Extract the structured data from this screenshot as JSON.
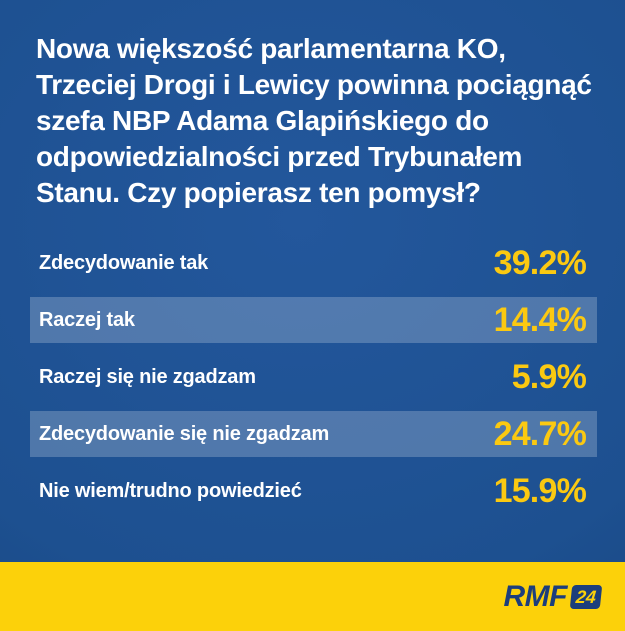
{
  "poll": {
    "question": "Nowa większość parlamentarna KO, Trzeciej Drogi i Lewicy powinna pociągnąć szefa NBP Adama Glapińskiego do odpowiedzialności przed Trybunałem Stanu. Czy popierasz ten pomysł?",
    "options": [
      {
        "label": "Zdecydowanie tak",
        "value": "39.2%",
        "highlighted": false
      },
      {
        "label": "Raczej tak",
        "value": "14.4%",
        "highlighted": true
      },
      {
        "label": "Raczej się nie zgadzam",
        "value": "5.9%",
        "highlighted": false
      },
      {
        "label": "Zdecydowanie się nie zgadzam",
        "value": "24.7%",
        "highlighted": true
      },
      {
        "label": "Nie wiem/trudno powiedzieć",
        "value": "15.9%",
        "highlighted": false
      }
    ]
  },
  "branding": {
    "logo_text": "RMF",
    "logo_badge": "24"
  },
  "colors": {
    "background_blue": "#1d5090",
    "background_blue_dark": "#153e76",
    "row_band": "rgba(255,255,255,0.22)",
    "percent_yellow": "#fbc911",
    "footer_yellow": "#fcd10a",
    "logo_navy": "#1c3e7c",
    "text_white": "#ffffff"
  },
  "chart_data": {
    "type": "table",
    "title": "Nowa większość parlamentarna KO, Trzeciej Drogi i Lewicy powinna pociągnąć szefa NBP Adama Glapińskiego do odpowiedzialności przed Trybunałem Stanu. Czy popierasz ten pomysł?",
    "categories": [
      "Zdecydowanie tak",
      "Raczej tak",
      "Raczej się nie zgadzam",
      "Zdecydowanie się nie zgadzam",
      "Nie wiem/trudno powiedzieć"
    ],
    "values": [
      39.2,
      14.4,
      5.9,
      24.7,
      15.9
    ],
    "unit": "%",
    "source": "RMF24"
  }
}
